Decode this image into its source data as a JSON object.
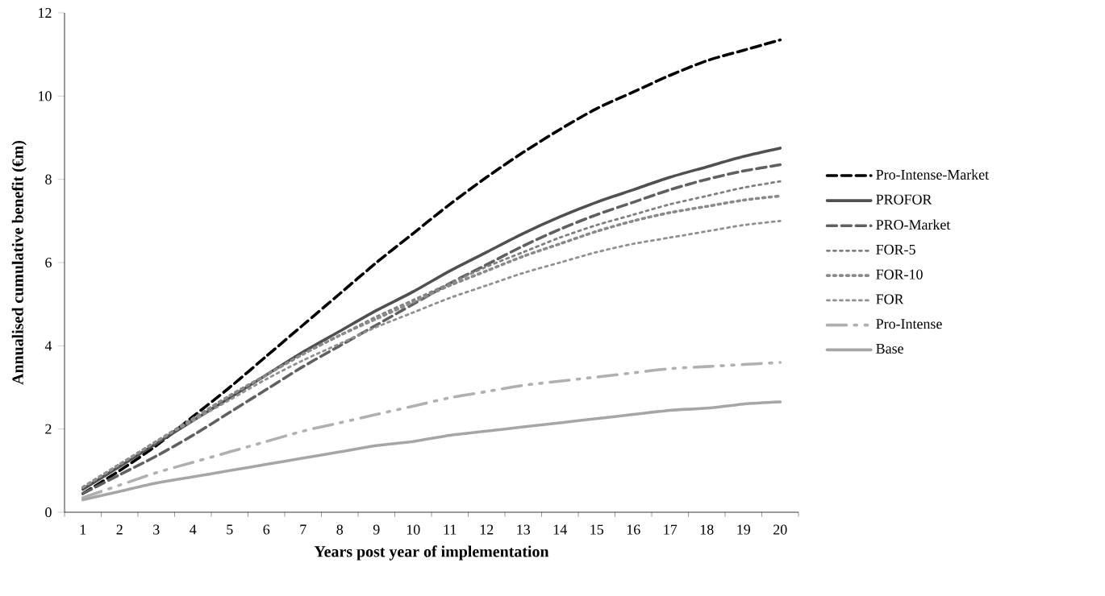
{
  "chart_data": {
    "type": "line",
    "xlabel": "Years post year of implementation",
    "ylabel": "Annualised cumulative benefit (€m)",
    "categories": [
      "1",
      "2",
      "3",
      "4",
      "5",
      "6",
      "7",
      "8",
      "9",
      "10",
      "11",
      "12",
      "13",
      "14",
      "15",
      "16",
      "17",
      "18",
      "19",
      "20"
    ],
    "ylim": [
      0,
      12
    ],
    "yticks": [
      0,
      2,
      4,
      6,
      8,
      10,
      12
    ],
    "grid": false,
    "legend": "right",
    "marker": "none",
    "series": [
      {
        "name": "Pro-Intense-Market",
        "color": "#000000",
        "line_style": "dashed",
        "values": [
          0.45,
          1.0,
          1.6,
          2.3,
          3.0,
          3.75,
          4.5,
          5.25,
          6.0,
          6.7,
          7.4,
          8.05,
          8.65,
          9.2,
          9.7,
          10.1,
          10.5,
          10.85,
          11.1,
          11.35
        ]
      },
      {
        "name": "PROFOR",
        "color": "#505050",
        "line_style": "solid",
        "values": [
          0.55,
          1.1,
          1.65,
          2.2,
          2.75,
          3.3,
          3.85,
          4.35,
          4.85,
          5.3,
          5.8,
          6.25,
          6.7,
          7.1,
          7.45,
          7.75,
          8.05,
          8.3,
          8.55,
          8.75
        ]
      },
      {
        "name": "PRO-Market",
        "color": "#606060",
        "line_style": "dashed",
        "values": [
          0.45,
          0.9,
          1.35,
          1.85,
          2.4,
          2.95,
          3.5,
          4.0,
          4.5,
          5.0,
          5.5,
          5.95,
          6.4,
          6.8,
          7.15,
          7.45,
          7.75,
          8.0,
          8.2,
          8.35
        ]
      },
      {
        "name": "FOR-5",
        "color": "#808080",
        "line_style": "dotted",
        "values": [
          0.6,
          1.15,
          1.7,
          2.25,
          2.8,
          3.3,
          3.8,
          4.25,
          4.7,
          5.1,
          5.5,
          5.9,
          6.25,
          6.6,
          6.9,
          7.15,
          7.4,
          7.6,
          7.8,
          7.95
        ]
      },
      {
        "name": "FOR-10",
        "color": "#8a8a8a",
        "line_style": "dotted",
        "values": [
          0.6,
          1.15,
          1.7,
          2.25,
          2.8,
          3.3,
          3.8,
          4.25,
          4.65,
          5.05,
          5.45,
          5.8,
          6.15,
          6.45,
          6.75,
          7.0,
          7.2,
          7.35,
          7.5,
          7.6
        ]
      },
      {
        "name": "FOR",
        "color": "#909090",
        "line_style": "dotted",
        "values": [
          0.6,
          1.15,
          1.7,
          2.2,
          2.7,
          3.2,
          3.65,
          4.05,
          4.45,
          4.8,
          5.15,
          5.45,
          5.75,
          6.0,
          6.25,
          6.45,
          6.6,
          6.75,
          6.9,
          7.0
        ]
      },
      {
        "name": "Pro-Intense",
        "color": "#b0b0b0",
        "line_style": "dashdot",
        "values": [
          0.35,
          0.65,
          0.95,
          1.2,
          1.45,
          1.7,
          1.95,
          2.15,
          2.35,
          2.55,
          2.75,
          2.9,
          3.05,
          3.15,
          3.25,
          3.35,
          3.45,
          3.5,
          3.55,
          3.6
        ]
      },
      {
        "name": "Base",
        "color": "#a6a6a6",
        "line_style": "solid",
        "values": [
          0.3,
          0.5,
          0.7,
          0.85,
          1.0,
          1.15,
          1.3,
          1.45,
          1.6,
          1.7,
          1.85,
          1.95,
          2.05,
          2.15,
          2.25,
          2.35,
          2.45,
          2.5,
          2.6,
          2.65
        ]
      }
    ]
  }
}
